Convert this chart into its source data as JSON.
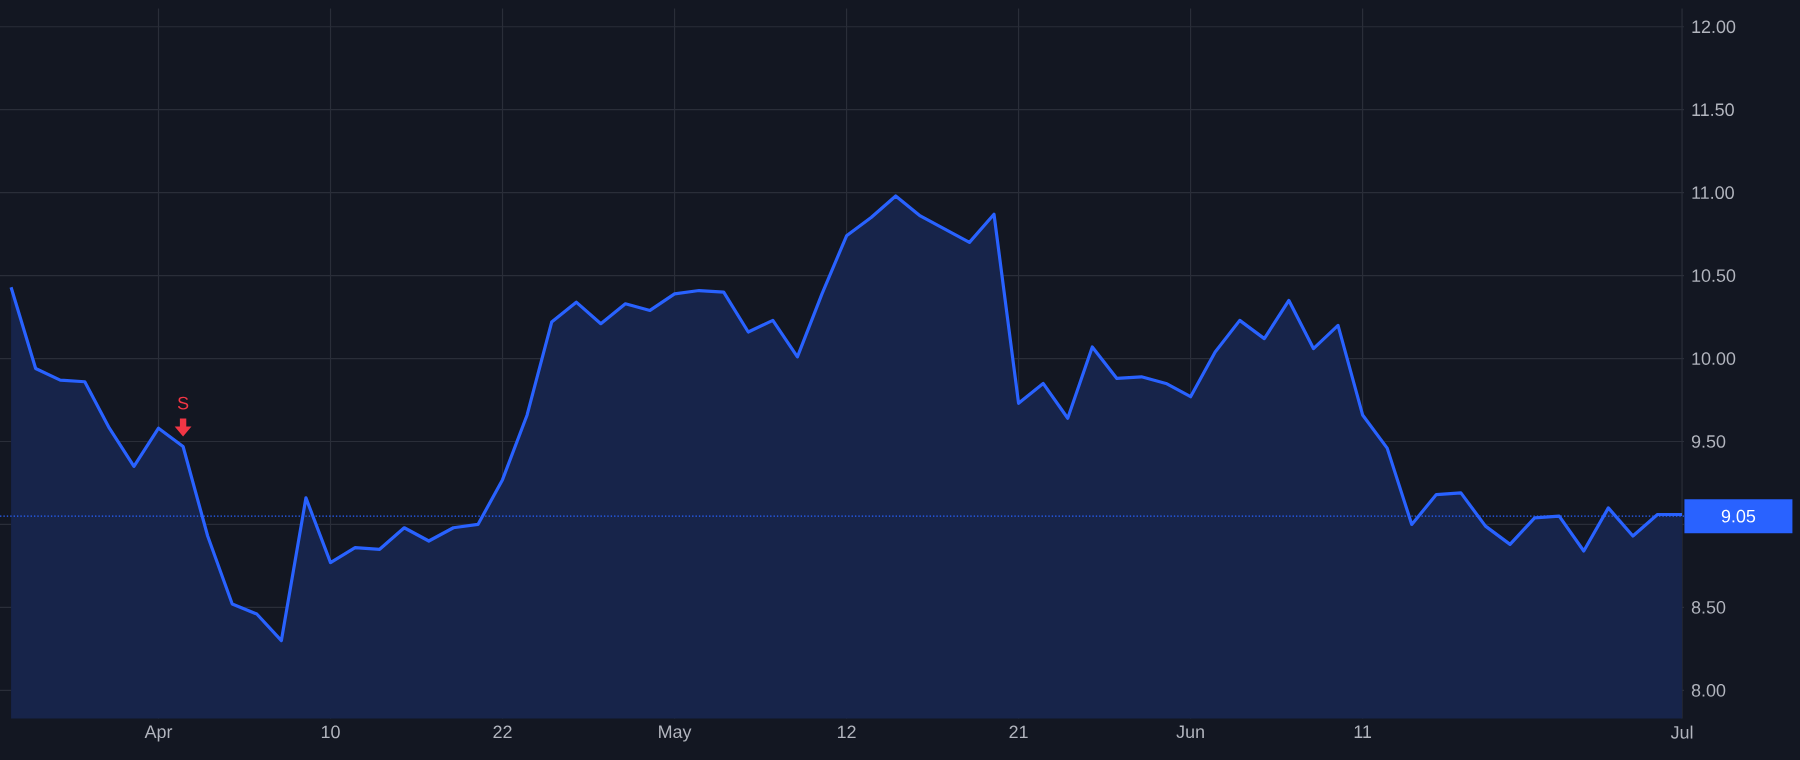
{
  "chart_data": {
    "type": "area",
    "categories": [
      null,
      null,
      null,
      null,
      null,
      null,
      "Apr",
      null,
      null,
      null,
      null,
      null,
      null,
      "10",
      null,
      null,
      null,
      null,
      null,
      null,
      "22",
      null,
      null,
      null,
      null,
      null,
      null,
      "May",
      null,
      null,
      null,
      null,
      null,
      null,
      "12",
      null,
      null,
      null,
      null,
      null,
      null,
      "21",
      null,
      null,
      null,
      null,
      null,
      null,
      "Jun",
      null,
      null,
      null,
      null,
      null,
      null,
      "11",
      null,
      null,
      null,
      null,
      null,
      null,
      null,
      null,
      null,
      null,
      null,
      null,
      "Jul"
    ],
    "series": [
      {
        "color": "#2962ff",
        "values": [
          10.43,
          9.94,
          9.87,
          9.86,
          9.58,
          9.35,
          9.58,
          9.47,
          8.93,
          8.52,
          8.46,
          8.3,
          9.16,
          8.77,
          8.86,
          8.85,
          8.98,
          8.9,
          8.98,
          9.0,
          9.27,
          9.66,
          10.22,
          10.34,
          10.21,
          10.33,
          10.29,
          10.39,
          10.41,
          10.4,
          10.16,
          10.23,
          10.01,
          10.39,
          10.74,
          10.85,
          10.98,
          10.86,
          10.78,
          10.7,
          10.87,
          9.73,
          9.85,
          9.64,
          10.07,
          9.88,
          9.89,
          9.85,
          9.77,
          10.04,
          10.23,
          10.12,
          10.35,
          10.06,
          10.2,
          9.66,
          9.46,
          9.0,
          9.18,
          9.19,
          8.99,
          8.88,
          9.04,
          9.05,
          8.84,
          9.1,
          8.93,
          9.06,
          9.06
        ]
      }
    ],
    "ylim": [
      7.83,
      12.11
    ],
    "yticks": [
      {
        "value": 8,
        "label": "8.00"
      },
      {
        "value": 8.5,
        "label": "8.50"
      },
      {
        "value": 9,
        "label": null
      },
      {
        "value": 9.5,
        "label": "9.50"
      },
      {
        "value": 10,
        "label": "10.00"
      },
      {
        "value": 10.5,
        "label": "10.50"
      },
      {
        "value": 11,
        "label": "11.00"
      },
      {
        "value": 11.5,
        "label": "11.50"
      },
      {
        "value": 12,
        "label": "12.00"
      }
    ],
    "ref_lines": [
      {
        "axis": "y",
        "value": 9.05,
        "label": "9.05",
        "color": "#2962ff",
        "line_style": "dotted"
      }
    ],
    "annotations": [
      {
        "text": "S",
        "y": 9.47
      }
    ],
    "grid": true
  }
}
